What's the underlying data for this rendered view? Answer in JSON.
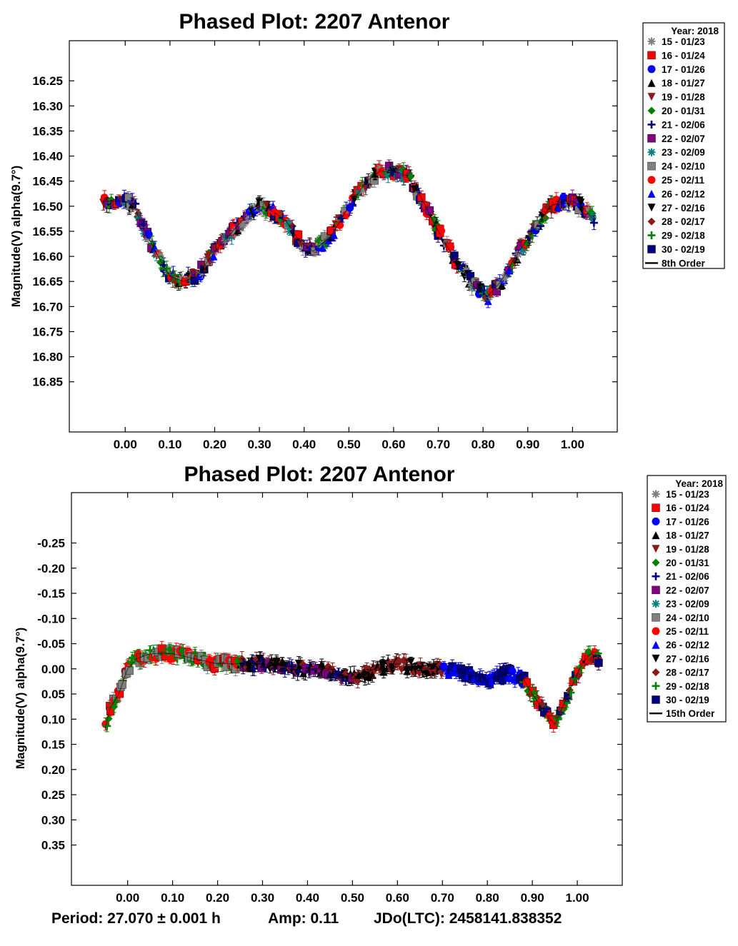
{
  "chart_data": [
    {
      "type": "scatter",
      "title": "Phased Plot: 2207 Antenor",
      "xlabel": "",
      "ylabel": "Magnitude(V) alpha(9.7°)",
      "xlim": [
        -0.125,
        1.1
      ],
      "ylim": [
        16.95,
        16.17
      ],
      "y_inverted": true,
      "xticks": [
        "0.00",
        "0.10",
        "0.20",
        "0.30",
        "0.40",
        "0.50",
        "0.60",
        "0.70",
        "0.80",
        "0.90",
        "1.00"
      ],
      "yticks": [
        "16.25",
        "16.30",
        "16.35",
        "16.40",
        "16.45",
        "16.50",
        "16.55",
        "16.60",
        "16.65",
        "16.70",
        "16.75",
        "16.80",
        "16.85"
      ],
      "curve": {
        "name": "8th Order",
        "points": [
          [
            -0.05,
            16.49
          ],
          [
            -0.02,
            16.49
          ],
          [
            0.0,
            16.49
          ],
          [
            0.02,
            16.5
          ],
          [
            0.05,
            16.56
          ],
          [
            0.08,
            16.61
          ],
          [
            0.1,
            16.64
          ],
          [
            0.13,
            16.65
          ],
          [
            0.16,
            16.64
          ],
          [
            0.2,
            16.59
          ],
          [
            0.24,
            16.55
          ],
          [
            0.27,
            16.52
          ],
          [
            0.3,
            16.5
          ],
          [
            0.33,
            16.51
          ],
          [
            0.36,
            16.53
          ],
          [
            0.39,
            16.57
          ],
          [
            0.42,
            16.59
          ],
          [
            0.46,
            16.56
          ],
          [
            0.5,
            16.5
          ],
          [
            0.54,
            16.45
          ],
          [
            0.57,
            16.43
          ],
          [
            0.6,
            16.43
          ],
          [
            0.63,
            16.44
          ],
          [
            0.66,
            16.48
          ],
          [
            0.7,
            16.55
          ],
          [
            0.74,
            16.61
          ],
          [
            0.78,
            16.66
          ],
          [
            0.81,
            16.68
          ],
          [
            0.84,
            16.65
          ],
          [
            0.88,
            16.59
          ],
          [
            0.92,
            16.54
          ],
          [
            0.95,
            16.5
          ],
          [
            0.98,
            16.49
          ],
          [
            1.0,
            16.49
          ],
          [
            1.02,
            16.5
          ],
          [
            1.05,
            16.53
          ]
        ]
      },
      "legend": {
        "title": "Year: 2018",
        "placement": "right",
        "entries": [
          {
            "label": "15 - 01/23",
            "marker": "star",
            "color": "#808080"
          },
          {
            "label": "16 - 01/24",
            "marker": "square",
            "color": "#ff0000"
          },
          {
            "label": "17 - 01/26",
            "marker": "circle",
            "color": "#0000ff"
          },
          {
            "label": "18 - 01/27",
            "marker": "triangle-up",
            "color": "#000000"
          },
          {
            "label": "19 - 01/28",
            "marker": "triangle-down",
            "color": "#8b1a1a"
          },
          {
            "label": "20 - 01/31",
            "marker": "diamond",
            "color": "#008000"
          },
          {
            "label": "21 - 02/06",
            "marker": "plus",
            "color": "#000080"
          },
          {
            "label": "22 - 02/07",
            "marker": "square",
            "color": "#800080"
          },
          {
            "label": "23 - 02/09",
            "marker": "star",
            "color": "#008080"
          },
          {
            "label": "24 - 02/10",
            "marker": "square",
            "color": "#808080"
          },
          {
            "label": "25 - 02/11",
            "marker": "circle",
            "color": "#ff0000"
          },
          {
            "label": "26 - 02/12",
            "marker": "triangle-up",
            "color": "#0000ff"
          },
          {
            "label": "27 - 02/16",
            "marker": "triangle-down",
            "color": "#000000"
          },
          {
            "label": "28 - 02/17",
            "marker": "diamond",
            "color": "#8b1a1a"
          },
          {
            "label": "29 - 02/18",
            "marker": "plus",
            "color": "#008000"
          },
          {
            "label": "30 - 02/19",
            "marker": "square",
            "color": "#000080"
          },
          {
            "label": "8th Order",
            "marker": "line",
            "color": "#000000"
          }
        ]
      }
    },
    {
      "type": "scatter",
      "title": "Phased Plot: 2207 Antenor",
      "xlabel": "",
      "ylabel": "Magnitude(V) alpha(9.7°)",
      "xlim": [
        -0.125,
        1.1
      ],
      "ylim": [
        0.43,
        -0.35
      ],
      "y_inverted": true,
      "xticks": [
        "0.00",
        "0.10",
        "0.20",
        "0.30",
        "0.40",
        "0.50",
        "0.60",
        "0.70",
        "0.80",
        "0.90",
        "1.00"
      ],
      "yticks": [
        "-0.25",
        "-0.20",
        "-0.15",
        "-0.10",
        "-0.05",
        "0.00",
        "0.05",
        "0.10",
        "0.15",
        "0.20",
        "0.25",
        "0.30",
        "0.35"
      ],
      "curve": {
        "name": "15th Order",
        "points": [
          [
            -0.05,
            0.12
          ],
          [
            -0.04,
            0.08
          ],
          [
            -0.02,
            0.05
          ],
          [
            0.0,
            0.0
          ],
          [
            0.02,
            -0.02
          ],
          [
            0.05,
            -0.03
          ],
          [
            0.1,
            -0.03
          ],
          [
            0.15,
            -0.02
          ],
          [
            0.2,
            -0.01
          ],
          [
            0.3,
            -0.01
          ],
          [
            0.4,
            0.0
          ],
          [
            0.45,
            0.0
          ],
          [
            0.5,
            0.02
          ],
          [
            0.55,
            0.0
          ],
          [
            0.6,
            -0.01
          ],
          [
            0.65,
            0.0
          ],
          [
            0.7,
            0.0
          ],
          [
            0.75,
            0.01
          ],
          [
            0.8,
            0.02
          ],
          [
            0.85,
            0.01
          ],
          [
            0.88,
            0.02
          ],
          [
            0.9,
            0.05
          ],
          [
            0.93,
            0.09
          ],
          [
            0.95,
            0.11
          ],
          [
            0.97,
            0.07
          ],
          [
            0.99,
            0.03
          ],
          [
            1.01,
            -0.01
          ],
          [
            1.03,
            -0.03
          ],
          [
            1.05,
            -0.02
          ]
        ]
      },
      "legend": {
        "title": "Year: 2018",
        "placement": "right",
        "entries": [
          {
            "label": "15 - 01/23",
            "marker": "star",
            "color": "#808080"
          },
          {
            "label": "16 - 01/24",
            "marker": "square",
            "color": "#ff0000"
          },
          {
            "label": "17 - 01/26",
            "marker": "circle",
            "color": "#0000ff"
          },
          {
            "label": "18 - 01/27",
            "marker": "triangle-up",
            "color": "#000000"
          },
          {
            "label": "19 - 01/28",
            "marker": "triangle-down",
            "color": "#8b1a1a"
          },
          {
            "label": "20 - 01/31",
            "marker": "diamond",
            "color": "#008000"
          },
          {
            "label": "21 - 02/06",
            "marker": "plus",
            "color": "#000080"
          },
          {
            "label": "22 - 02/07",
            "marker": "square",
            "color": "#800080"
          },
          {
            "label": "23 - 02/09",
            "marker": "star",
            "color": "#008080"
          },
          {
            "label": "24 - 02/10",
            "marker": "square",
            "color": "#808080"
          },
          {
            "label": "25 - 02/11",
            "marker": "circle",
            "color": "#ff0000"
          },
          {
            "label": "26 - 02/12",
            "marker": "triangle-up",
            "color": "#0000ff"
          },
          {
            "label": "27 - 02/16",
            "marker": "triangle-down",
            "color": "#000000"
          },
          {
            "label": "28 - 02/17",
            "marker": "diamond",
            "color": "#8b1a1a"
          },
          {
            "label": "29 - 02/18",
            "marker": "plus",
            "color": "#008000"
          },
          {
            "label": "30 - 02/19",
            "marker": "square",
            "color": "#000080"
          },
          {
            "label": "15th Order",
            "marker": "line",
            "color": "#000000"
          }
        ]
      },
      "footer": {
        "period": "Period: 27.070 ± 0.001 h",
        "amp": "Amp: 0.11",
        "jdo": "JDo(LTC): 2458141.838352"
      }
    }
  ]
}
